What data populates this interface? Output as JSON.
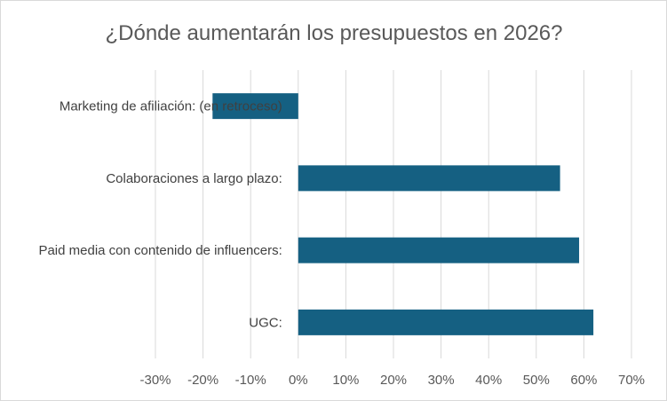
{
  "chart_data": {
    "type": "bar",
    "orientation": "horizontal",
    "title": "¿Dónde aumentarán los presupuestos en 2026?",
    "categories": [
      "Marketing de afiliación:  (en retroceso)",
      "Colaboraciones a largo plazo:",
      "Paid media con contenido de influencers:",
      "UGC:"
    ],
    "values": [
      -18,
      55,
      59,
      62
    ],
    "xlim": [
      -30,
      70
    ],
    "x_ticks": [
      -30,
      -20,
      -10,
      0,
      10,
      20,
      30,
      40,
      50,
      60,
      70
    ],
    "x_tick_labels": [
      "-30%",
      "-20%",
      "-10%",
      "0%",
      "10%",
      "20%",
      "30%",
      "40%",
      "50%",
      "60%",
      "70%"
    ],
    "grid": true,
    "legend": "none",
    "bar_color": "#156082"
  }
}
